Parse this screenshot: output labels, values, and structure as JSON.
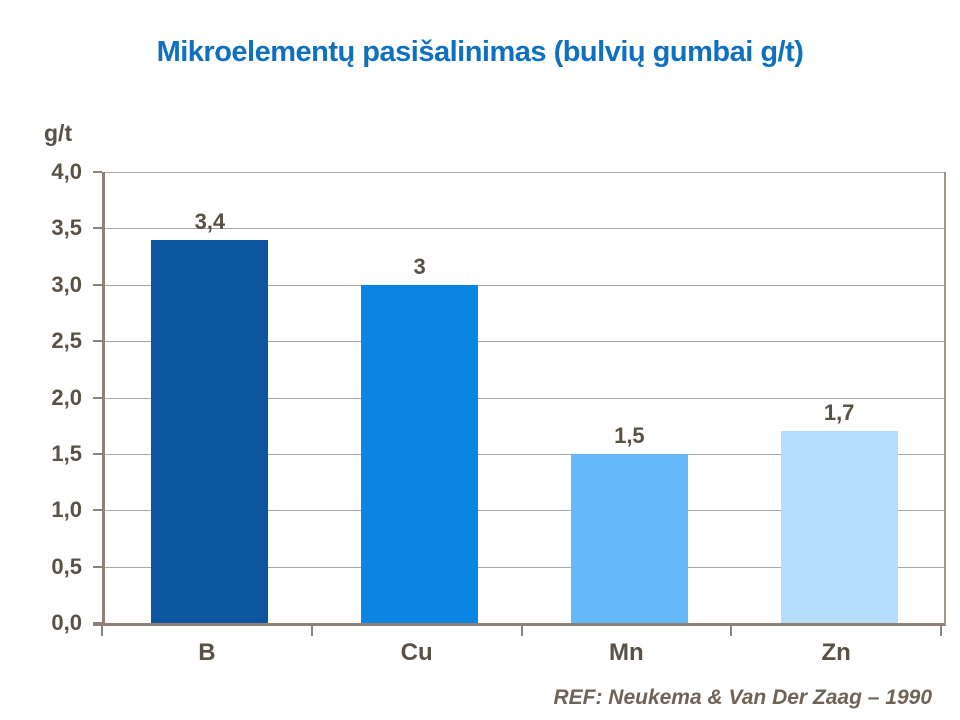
{
  "chart_data": {
    "type": "bar",
    "title": "Mikroelementų pasišalinimas (bulvių gumbai g/t)",
    "ylabel": "g/t",
    "categories": [
      "B",
      "Cu",
      "Mn",
      "Zn"
    ],
    "values": [
      3.4,
      3,
      1.5,
      1.7
    ],
    "value_labels": [
      "3,4",
      "3",
      "1,5",
      "1,7"
    ],
    "bar_colors": [
      "#0b569f",
      "#0a85e4",
      "#63b9fb",
      "#b6defc"
    ],
    "ylim": [
      0,
      4
    ],
    "ytick_step": 0.5,
    "ytick_labels": [
      "0,0",
      "0,5",
      "1,0",
      "1,5",
      "2,0",
      "2,5",
      "3,0",
      "3,5",
      "4,0"
    ],
    "grid": true,
    "legend": false,
    "footer": "REF: Neukema & Van Der Zaag – 1990",
    "colors": {
      "title_text": "#0f70c0",
      "axis_label_text": "#595046",
      "footer_text": "#6e6356",
      "axis_line": "#8d8275",
      "gridline": "#a6a6a6",
      "plot_right_border": "#a0968a",
      "background": "#ffffff"
    }
  }
}
